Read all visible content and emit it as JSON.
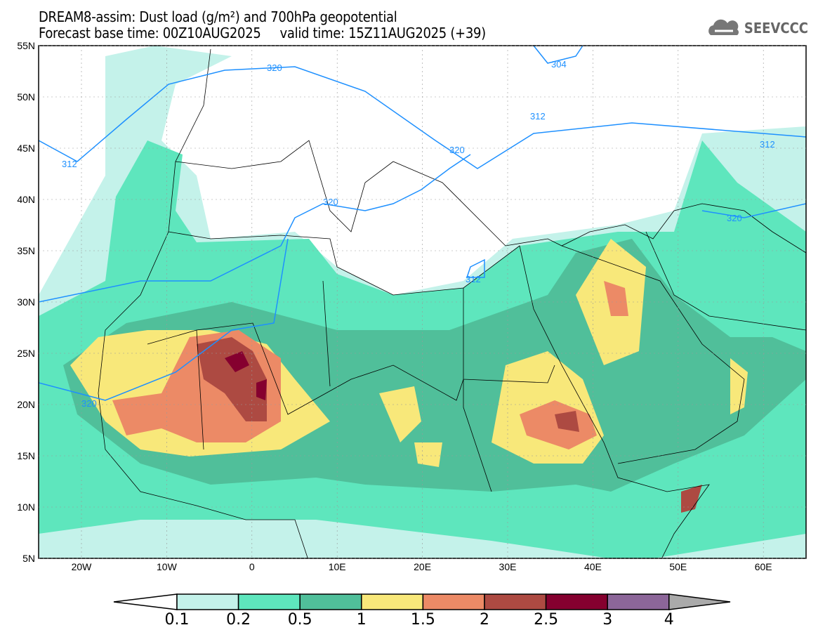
{
  "title": {
    "line1": "DREAM8-assim: Dust load (g/m²) and 700hPa geopotential",
    "line2": "Forecast base time: 00Z10AUG2025     valid time: 15Z11AUG2025 (+39)"
  },
  "logo": {
    "text": "SEEVCCC",
    "icon": "cloud-icon"
  },
  "axes": {
    "lat_labels": [
      "55N",
      "50N",
      "45N",
      "40N",
      "35N",
      "30N",
      "25N",
      "20N",
      "15N",
      "10N",
      "5N"
    ],
    "lon_labels": [
      "20W",
      "10W",
      "0",
      "10E",
      "20E",
      "30E",
      "40E",
      "50E",
      "60E"
    ]
  },
  "contour_labels": [
    "320",
    "312",
    "304",
    "312",
    "320",
    "312",
    "320",
    "312",
    "320",
    "320"
  ],
  "colorbar": {
    "ticks": [
      "0.1",
      "0.2",
      "0.5",
      "1",
      "1.5",
      "2",
      "2.5",
      "3",
      "4"
    ],
    "colors": [
      "#ffffff",
      "#c4f2ea",
      "#5ee6bd",
      "#50bf9a",
      "#f8e87a",
      "#ec8a66",
      "#ad4a42",
      "#85002f",
      "#8c6699",
      "#aaaaaa"
    ]
  },
  "contour_color": "#1e90ff"
}
